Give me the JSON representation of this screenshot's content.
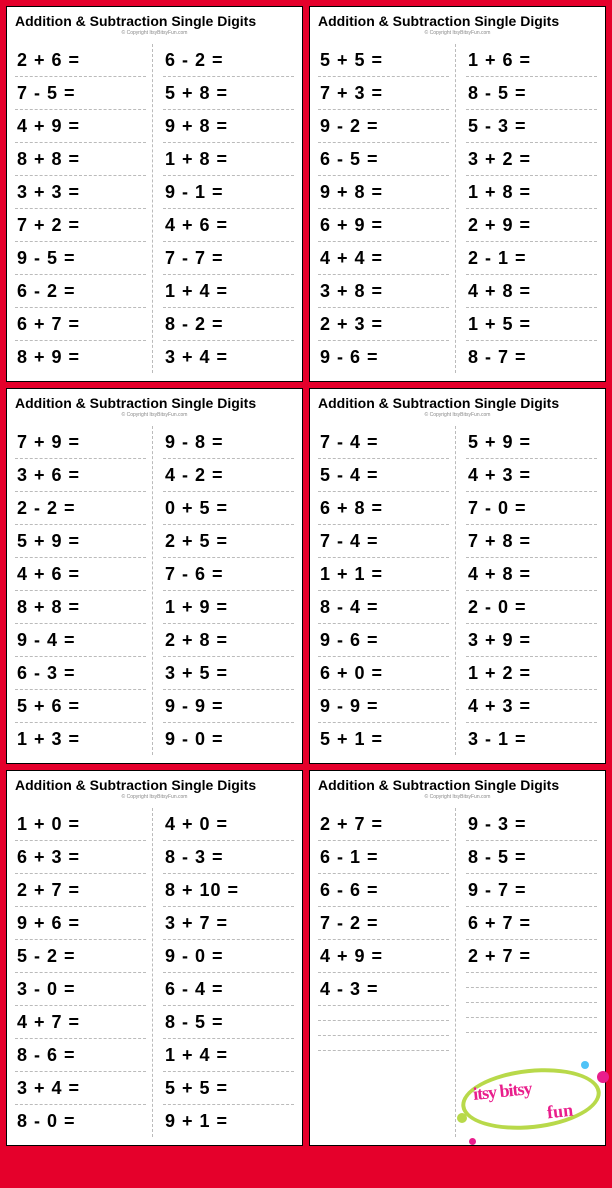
{
  "title": "Addition & Subtraction Single Digits",
  "subtitle": "© Copyright ItsyBitsyFun.com",
  "background_color": "#e5002b",
  "sheet_bg": "#ffffff",
  "text_color": "#000000",
  "dash_color": "#bbbbbb",
  "font_family": "Arial Black",
  "watermark": {
    "text1": "itsy bitsy",
    "text2": "fun",
    "border_color": "#b8d94a",
    "text_color": "#e91e8c",
    "dot_colors": [
      "#e91e8c",
      "#4fc3f7",
      "#b8d94a",
      "#e91e8c"
    ]
  },
  "worksheets": [
    {
      "left": [
        "2 + 6 =",
        "7 - 5 =",
        "4 + 9 =",
        "8 + 8 =",
        "3 + 3 =",
        "7 + 2 =",
        "9 - 5 =",
        "6 - 2 =",
        "6 + 7 =",
        "8 + 9 ="
      ],
      "right": [
        "6 - 2 =",
        "5 + 8 =",
        "9 + 8 =",
        "1 + 8 =",
        "9 - 1 =",
        "4 + 6 =",
        "7 - 7 =",
        "1 + 4 =",
        "8 - 2 =",
        "3 + 4 ="
      ]
    },
    {
      "left": [
        "5 + 5 =",
        "7 + 3 =",
        "9 - 2 =",
        "6 - 5 =",
        "9 + 8 =",
        "6 + 9 =",
        "4 + 4 =",
        "3 + 8 =",
        "2 + 3 =",
        "9 - 6 ="
      ],
      "right": [
        "1 + 6 =",
        "8 - 5 =",
        "5 - 3 =",
        "3 + 2 =",
        "1 + 8 =",
        "2 + 9 =",
        "2 - 1 =",
        "4 + 8 =",
        "1 + 5 =",
        "8 - 7 ="
      ]
    },
    {
      "left": [
        "7 + 9 =",
        "3 + 6 =",
        "2 - 2 =",
        "5 + 9 =",
        "4 + 6 =",
        "8 + 8 =",
        "9 - 4 =",
        "6 - 3 =",
        "5 + 6 =",
        "1 + 3 ="
      ],
      "right": [
        "9 - 8 =",
        "4 - 2 =",
        "0 + 5 =",
        "2 + 5 =",
        "7 - 6 =",
        "1 + 9 =",
        "2 + 8 =",
        "3 + 5 =",
        "9 - 9 =",
        "9 - 0 ="
      ]
    },
    {
      "left": [
        "7 - 4 =",
        "5 - 4 =",
        "6 + 8 =",
        "7 - 4 =",
        "1 + 1 =",
        "8 - 4 =",
        "9 - 6 =",
        "6 + 0 =",
        "9 - 9 =",
        "5 + 1 ="
      ],
      "right": [
        "5 + 9 =",
        "4 + 3 =",
        "7 - 0 =",
        "7 + 8 =",
        "4 + 8 =",
        "2 - 0 =",
        "3 + 9 =",
        "1 + 2 =",
        "4 + 3 =",
        "3 - 1 ="
      ]
    },
    {
      "left": [
        "1 + 0 =",
        "6 + 3 =",
        "2 + 7 =",
        "9 + 6 =",
        "5 - 2 =",
        "3 - 0 =",
        "4 + 7 =",
        "8 - 6 =",
        "3 + 4 =",
        "8 - 0 ="
      ],
      "right": [
        "4 + 0 =",
        "8 - 3 =",
        "8 + 10 =",
        "3 + 7 =",
        "9 - 0 =",
        "6 - 4 =",
        "8 - 5 =",
        "1 + 4 =",
        "5 + 5 =",
        "9 + 1 ="
      ]
    },
    {
      "left": [
        "2 + 7 =",
        "6 - 1 =",
        "6 - 6 =",
        "7 - 2 =",
        "4 + 9 =",
        "4 - 3 =",
        "",
        "",
        "",
        ""
      ],
      "right": [
        "9 - 3 =",
        "8 - 5 =",
        "9 - 7 =",
        "6 + 7 =",
        "2 + 7 =",
        "",
        "",
        "",
        "",
        ""
      ]
    }
  ]
}
